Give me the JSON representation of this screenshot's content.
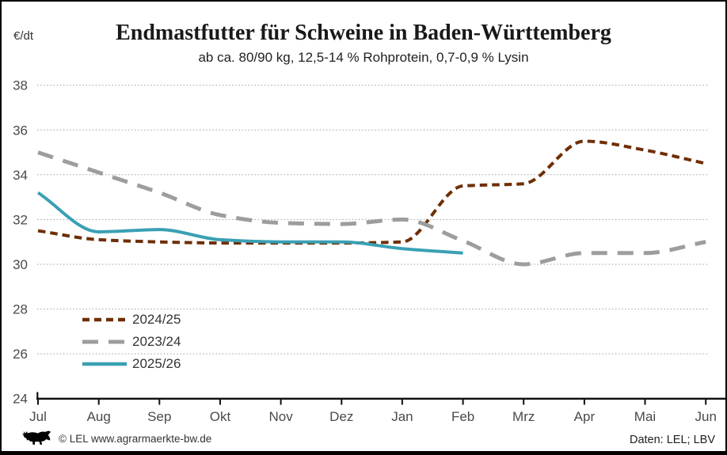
{
  "header": {
    "title": "Endmastfutter für Schweine in Baden-Württemberg",
    "subtitle": "ab ca. 80/90 kg, 12,5-14 % Rohprotein, 0,7-0,9 % Lysin"
  },
  "footer": {
    "copyright": "© LEL www.agrarmaerkte-bw.de",
    "source": "Daten: LEL; LBV",
    "logo": "baden-wuerttemberg-lion"
  },
  "chart_data": {
    "type": "line",
    "title": "Endmastfutter für Schweine in Baden-Württemberg",
    "subtitle": "ab ca. 80/90 kg, 12,5-14 % Rohprotein, 0,7-0,9 % Lysin",
    "ylabel": "€/dt",
    "xlabel": "",
    "categories": [
      "Jul",
      "Aug",
      "Sep",
      "Okt",
      "Nov",
      "Dez",
      "Jan",
      "Feb",
      "Mrz",
      "Apr",
      "Mai",
      "Jun"
    ],
    "ylim": [
      24,
      38
    ],
    "yticks": [
      24,
      26,
      28,
      30,
      32,
      34,
      36,
      38
    ],
    "grid": "horizontal-dotted",
    "grid_color": "#9e9e9e",
    "axis_color": "#111111",
    "label_color": "#4a4a4a",
    "legend_position": "inside-bottom-left",
    "series": [
      {
        "name": "2024/25",
        "color": "#6E2F05",
        "style": "dashed-short",
        "values": [
          31.5,
          31.1,
          31.0,
          30.95,
          30.95,
          30.95,
          31.0,
          33.5,
          33.6,
          35.5,
          35.1,
          34.5
        ]
      },
      {
        "name": "2023/24",
        "color": "#9D9D9D",
        "style": "dashed-long",
        "values": [
          35.0,
          34.1,
          33.2,
          32.2,
          31.85,
          31.8,
          32.0,
          31.05,
          30.0,
          30.5,
          30.5,
          31.0
        ]
      },
      {
        "name": "2025/26",
        "color": "#3AA0B4",
        "style": "solid",
        "values": [
          33.2,
          31.45,
          31.55,
          31.1,
          31.0,
          31.0,
          30.7,
          30.5,
          null,
          null,
          null,
          null
        ]
      }
    ]
  }
}
